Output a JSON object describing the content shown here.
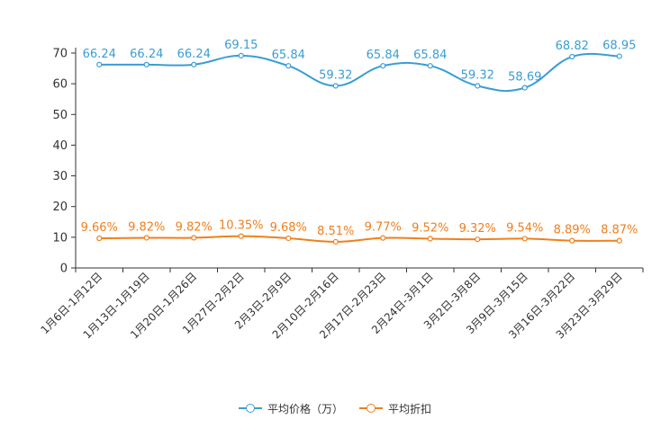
{
  "chart_data": {
    "type": "line",
    "categories": [
      "1月6日-1月12日",
      "1月13日-1月19日",
      "1月20日-1月26日",
      "1月27日-2月2日",
      "2月3日-2月9日",
      "2月10日-2月16日",
      "2月17日-2月23日",
      "2月24日-3月1日",
      "3月2日-3月8日",
      "3月9日-3月15日",
      "3月16日-3月22日",
      "3月23日-3月29日"
    ],
    "series": [
      {
        "name": "平均价格（万）",
        "color": "#3a9dd4",
        "values": [
          66.24,
          66.24,
          66.24,
          69.15,
          65.84,
          59.32,
          65.84,
          65.84,
          59.32,
          58.69,
          68.82,
          68.95
        ],
        "labels": [
          "66.24",
          "66.24",
          "66.24",
          "69.15",
          "65.84",
          "59.32",
          "65.84",
          "65.84",
          "59.32",
          "58.69",
          "68.82",
          "68.95"
        ]
      },
      {
        "name": "平均折扣",
        "color": "#f07f1c",
        "values": [
          9.66,
          9.82,
          9.82,
          10.35,
          9.68,
          8.51,
          9.77,
          9.52,
          9.32,
          9.54,
          8.89,
          8.87
        ],
        "labels": [
          "9.66%",
          "9.82%",
          "9.82%",
          "10.35%",
          "9.68%",
          "8.51%",
          "9.77%",
          "9.52%",
          "9.32%",
          "9.54%",
          "8.89%",
          "8.87%"
        ]
      }
    ],
    "yticks": [
      "0",
      "10",
      "20",
      "30",
      "40",
      "50",
      "60",
      "70"
    ],
    "ylim": [
      0,
      70
    ],
    "title": "",
    "xlabel": "",
    "ylabel": "",
    "legend_position": "bottom-center"
  }
}
